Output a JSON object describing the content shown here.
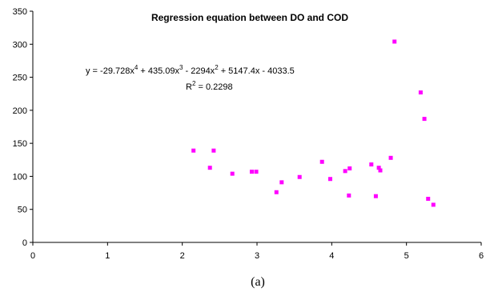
{
  "chart_data": {
    "type": "scatter",
    "title": "Regression equation between DO and COD",
    "xlabel": "",
    "ylabel": "",
    "xlim": [
      0,
      6
    ],
    "ylim": [
      0,
      350
    ],
    "x_ticks": [
      "0",
      "1",
      "2",
      "3",
      "4",
      "5",
      "6"
    ],
    "y_ticks": [
      "0",
      "50",
      "100",
      "150",
      "200",
      "250",
      "300",
      "350"
    ],
    "grid": false,
    "marker_color": "#ff00ff",
    "series": [
      {
        "x": [
          2.15,
          2.37,
          2.42,
          2.67,
          2.93,
          2.99,
          3.26,
          3.33,
          3.57,
          3.87,
          3.98,
          4.18,
          4.23,
          4.24,
          4.53,
          4.59,
          4.63,
          4.65,
          4.79,
          4.84,
          5.19,
          5.24,
          5.29,
          5.36
        ],
        "y": [
          139,
          113,
          139,
          104,
          107,
          107,
          76,
          91,
          99,
          122,
          96,
          108,
          71,
          112,
          118,
          70,
          113,
          109,
          128,
          304,
          227,
          187,
          66,
          57
        ]
      }
    ],
    "annotations": {
      "equation": {
        "prefix": "y = -29.728x",
        "p1": "4",
        "mid1": " + 435.09x",
        "p2": "3",
        "mid2": " - 2294x",
        "p3": "2",
        "suffix": " + 5147.4x - 4033.5"
      },
      "r2": {
        "prefix": "R",
        "sup": "2",
        "suffix": " = 0.2298"
      }
    }
  },
  "caption": "(a)"
}
